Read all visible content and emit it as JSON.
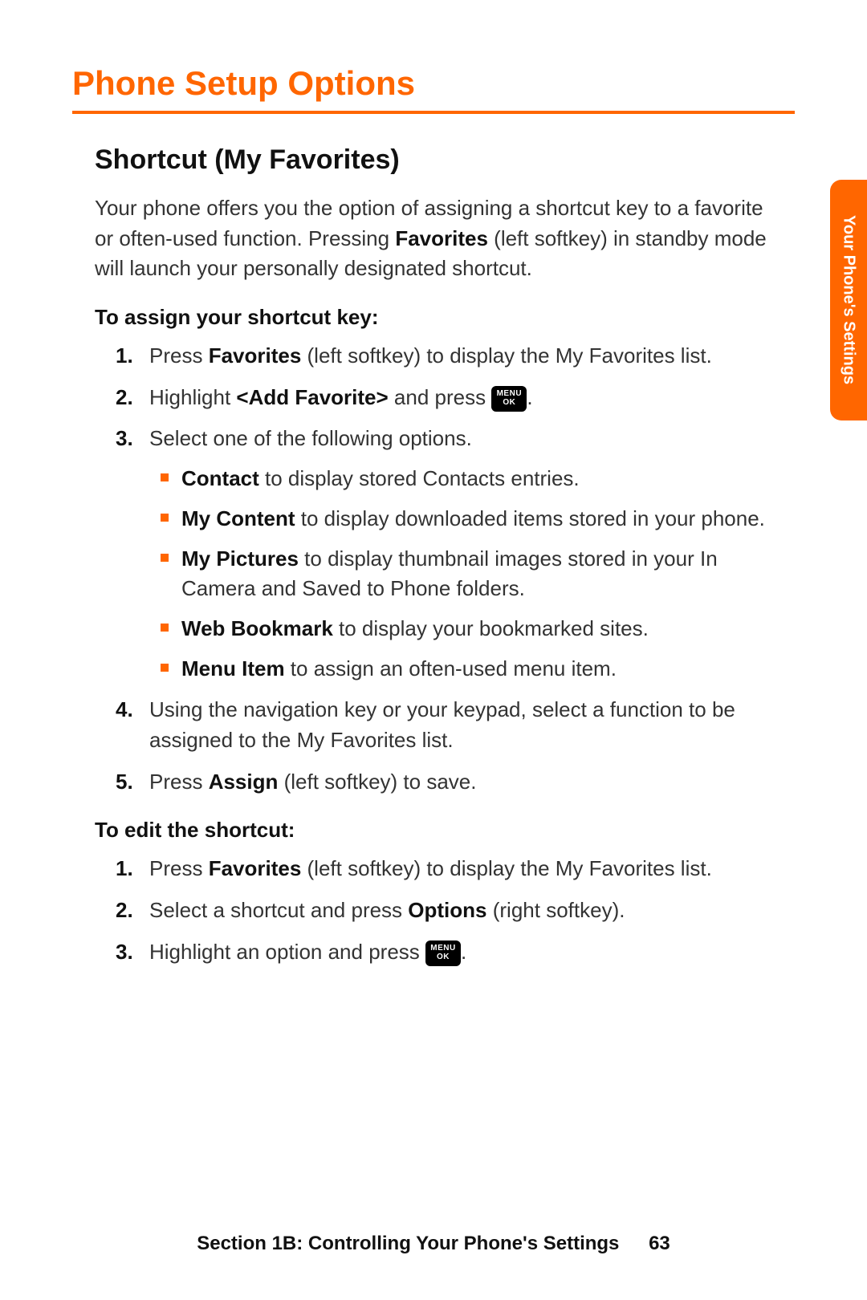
{
  "colors": {
    "accent": "#ff6600",
    "text": "#333333",
    "heading": "#111111",
    "bg": "#ffffff"
  },
  "typography": {
    "title_pt": 42,
    "sub_pt": 34,
    "body_pt": 26,
    "footer_pt": 24,
    "tab_pt": 20
  },
  "side_tab": "Your Phone's Settings",
  "title": "Phone Setup Options",
  "subtitle": "Shortcut (My Favorites)",
  "intro": {
    "pre": "Your phone offers you the option of assigning a shortcut key to a favorite or often-used function. Pressing ",
    "bold": "Favorites",
    "post": " (left softkey) in standby mode will launch your personally designated shortcut."
  },
  "assign": {
    "lead": "To assign your shortcut key:",
    "step1": {
      "num": "1.",
      "pre": "Press ",
      "bold": "Favorites",
      "post": " (left softkey) to display the My Favorites list."
    },
    "step2": {
      "num": "2.",
      "pre": "Highlight ",
      "bold": "<Add Favorite>",
      "post": " and press ",
      "icon_top": "MENU",
      "icon_bot": "OK",
      "tail": "."
    },
    "step3": {
      "num": "3.",
      "text": "Select one of the following options.",
      "opts": {
        "o1": {
          "bold": "Contact",
          "post": " to display stored Contacts entries."
        },
        "o2": {
          "bold": "My Content",
          "post": " to display downloaded items stored in your phone."
        },
        "o3": {
          "bold": "My Pictures",
          "post": " to display thumbnail images stored in your In Camera and Saved to Phone folders."
        },
        "o4": {
          "bold": "Web Bookmark",
          "post": " to display your bookmarked sites."
        },
        "o5": {
          "bold": "Menu Item",
          "post": " to assign an often-used menu item."
        }
      }
    },
    "step4": {
      "num": "4.",
      "text": "Using the navigation key or your keypad, select a function to be assigned to the My Favorites list."
    },
    "step5": {
      "num": "5.",
      "pre": "Press ",
      "bold": "Assign",
      "post": " (left softkey) to save."
    }
  },
  "edit": {
    "lead": "To edit the shortcut:",
    "step1": {
      "num": "1.",
      "pre": "Press ",
      "bold": "Favorites",
      "post": " (left softkey) to display the My Favorites list."
    },
    "step2": {
      "num": "2.",
      "pre": "Select a shortcut and press ",
      "bold": "Options",
      "post": " (right softkey)."
    },
    "step3": {
      "num": "3.",
      "pre": "Highlight an option and press ",
      "icon_top": "MENU",
      "icon_bot": "OK",
      "tail": "."
    }
  },
  "footer": {
    "section": "Section 1B: Controlling Your Phone's Settings",
    "page": "63"
  }
}
